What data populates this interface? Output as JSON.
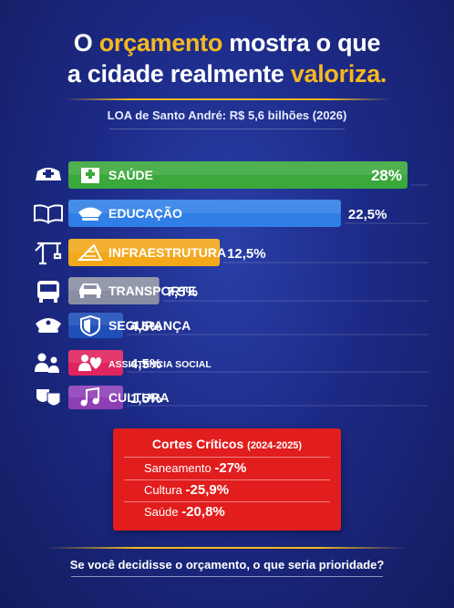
{
  "header": {
    "line1_pre": "O ",
    "line1_hl": "orçamento",
    "line1_post": " mostra o que",
    "line2_pre": "a cidade realmente ",
    "line2_hl": "valoriza.",
    "subtitle": "LOA de Santo André: R$ 5,6 bilhões (2026)"
  },
  "colors": {
    "accent": "#f5b820",
    "background": "#1c2a86",
    "cuts_box": "#e21d1d"
  },
  "chart_data": {
    "type": "bar",
    "categories": [
      "SAÚDE",
      "EDUCAÇÃO",
      "INFRAESTRUTURA",
      "TRANSPORTE",
      "SEGURANÇA",
      "ASSISTÊNCIA SOCIAL",
      "CULTURA"
    ],
    "values": [
      28,
      22.5,
      12.5,
      7.5,
      4.5,
      4.5,
      1.5
    ],
    "value_labels": [
      "28%",
      "22,5%",
      "12,5%",
      "7,5%",
      "4,5%",
      "4,5%",
      "1,5%"
    ],
    "bar_colors": [
      "#3aa83a",
      "#2f7fe6",
      "#f3a81a",
      "#8a8ea3",
      "#1f4fb8",
      "#e0245e",
      "#8e3fb6"
    ],
    "left_icons": [
      "nurse-cap-cross-icon",
      "open-book-icon",
      "construction-crane-icon",
      "bus-icon",
      "police-cap-icon",
      "family-icon",
      "theater-masks-icon"
    ],
    "bar_icons": [
      "hospital-icon",
      "graduation-cap-icon",
      "ruler-blueprint-icon",
      "car-icon",
      "shield-icon",
      "heart-hands-icon",
      "music-note-icon"
    ],
    "xlim": [
      0,
      28
    ],
    "orientation": "horizontal"
  },
  "cuts": {
    "title": "Cortes Críticos",
    "period": "(2024-2025)",
    "items": [
      {
        "label": "Saneamento",
        "value": "-27%"
      },
      {
        "label": "Cultura",
        "value": "-25,9%"
      },
      {
        "label": "Saúde",
        "value": "-20,8%"
      }
    ]
  },
  "footer": {
    "question": "Se você decidisse o orçamento, o que seria prioridade?"
  }
}
